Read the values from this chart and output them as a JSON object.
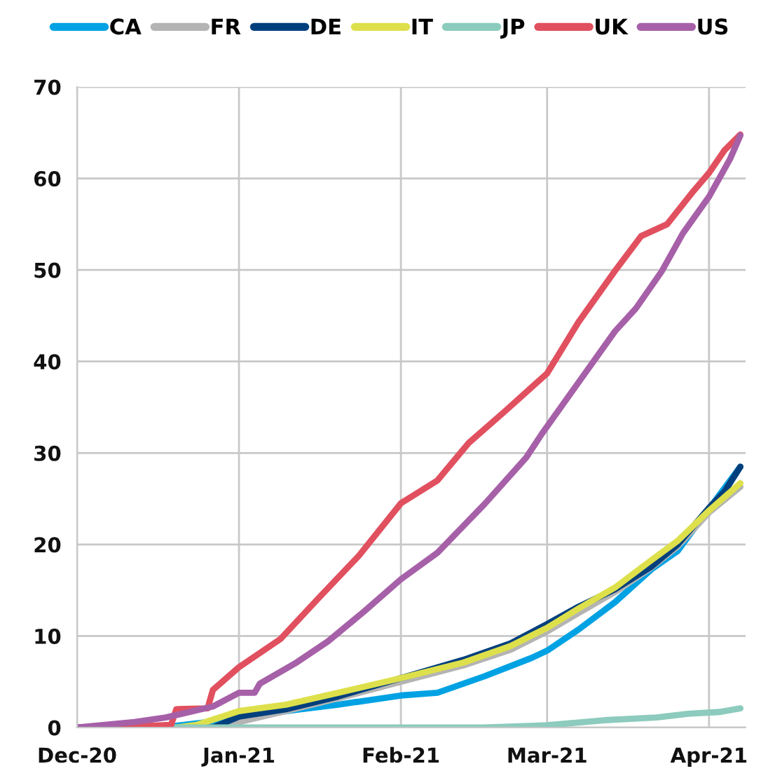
{
  "chart_data": {
    "type": "line",
    "legend": "top",
    "grid": true,
    "line_style": "solid",
    "xlim": [
      "2020-12-01",
      "2021-04-08"
    ],
    "xticks": [
      {
        "value": "2020-12-01",
        "label": "Dec-20"
      },
      {
        "value": "2021-01-01",
        "label": "Jan-21"
      },
      {
        "value": "2021-02-01",
        "label": "Feb-21"
      },
      {
        "value": "2021-03-01",
        "label": "Mar-21"
      },
      {
        "value": "2021-04-01",
        "label": "Apr-21"
      }
    ],
    "ylim": [
      0,
      70
    ],
    "yticks": [
      0,
      10,
      20,
      30,
      40,
      50,
      60,
      70
    ],
    "series": [
      {
        "name": "CA",
        "color": "#00a2e3",
        "x": [
          "2020-12-01",
          "2020-12-14",
          "2020-12-20",
          "2021-01-01",
          "2021-01-10",
          "2021-01-20",
          "2021-02-01",
          "2021-02-08",
          "2021-02-17",
          "2021-02-26",
          "2021-03-01",
          "2021-03-07",
          "2021-03-14",
          "2021-03-21",
          "2021-03-26",
          "2021-03-30",
          "2021-04-01",
          "2021-04-07"
        ],
        "values": [
          0,
          0,
          0.2,
          1.0,
          1.8,
          2.5,
          3.5,
          3.8,
          5.6,
          7.6,
          8.4,
          10.7,
          13.7,
          17.3,
          19.3,
          22.4,
          23.9,
          28.5
        ]
      },
      {
        "name": "FR",
        "color": "#b4b4b4",
        "x": [
          "2020-12-01",
          "2020-12-27",
          "2021-01-01",
          "2021-01-10",
          "2021-01-20",
          "2021-02-01",
          "2021-02-13",
          "2021-02-22",
          "2021-03-01",
          "2021-03-07",
          "2021-03-14",
          "2021-03-21",
          "2021-03-26",
          "2021-04-01",
          "2021-04-07"
        ],
        "values": [
          0,
          0,
          0.6,
          1.8,
          3.2,
          5.0,
          6.8,
          8.5,
          10.5,
          12.5,
          14.8,
          17.5,
          19.8,
          23.5,
          26.3
        ]
      },
      {
        "name": "DE",
        "color": "#003f7d",
        "x": [
          "2020-12-01",
          "2020-12-27",
          "2021-01-01",
          "2021-01-10",
          "2021-01-20",
          "2021-02-01",
          "2021-02-13",
          "2021-02-22",
          "2021-03-01",
          "2021-03-07",
          "2021-03-14",
          "2021-03-21",
          "2021-03-26",
          "2021-04-01",
          "2021-04-04",
          "2021-04-07"
        ],
        "values": [
          0,
          0,
          1.2,
          2.0,
          3.4,
          5.4,
          7.4,
          9.2,
          11.3,
          13.2,
          15.1,
          17.6,
          20.0,
          24.0,
          25.8,
          28.5
        ]
      },
      {
        "name": "IT",
        "color": "#dde04b",
        "x": [
          "2020-12-01",
          "2020-12-20",
          "2020-12-24",
          "2021-01-01",
          "2021-01-10",
          "2021-01-20",
          "2021-02-01",
          "2021-02-13",
          "2021-02-22",
          "2021-03-01",
          "2021-03-07",
          "2021-03-14",
          "2021-03-21",
          "2021-03-26",
          "2021-04-01",
          "2021-04-07"
        ],
        "values": [
          0,
          0,
          0.3,
          1.8,
          2.5,
          3.8,
          5.4,
          7.1,
          8.9,
          10.9,
          13.0,
          15.3,
          18.3,
          20.4,
          23.7,
          26.7
        ]
      },
      {
        "name": "JP",
        "color": "#8ccbbd",
        "x": [
          "2020-12-01",
          "2021-02-17",
          "2021-03-01",
          "2021-03-12",
          "2021-03-22",
          "2021-03-28",
          "2021-04-03",
          "2021-04-07"
        ],
        "values": [
          0,
          0,
          0.25,
          0.8,
          1.1,
          1.5,
          1.7,
          2.1
        ]
      },
      {
        "name": "UK",
        "color": "#e1505f",
        "x": [
          "2020-12-01",
          "2020-12-08",
          "2020-12-19",
          "2020-12-20",
          "2020-12-26",
          "2020-12-27",
          "2021-01-01",
          "2021-01-09",
          "2021-01-16",
          "2021-01-24",
          "2021-02-01",
          "2021-02-08",
          "2021-02-14",
          "2021-02-21",
          "2021-03-01",
          "2021-03-07",
          "2021-03-14",
          "2021-03-19",
          "2021-03-24",
          "2021-03-29",
          "2021-04-01",
          "2021-04-04",
          "2021-04-07"
        ],
        "values": [
          0,
          0,
          0.3,
          2.0,
          2.1,
          4.1,
          6.6,
          9.7,
          14.0,
          18.8,
          24.5,
          27.0,
          31.1,
          34.6,
          38.7,
          44.3,
          49.9,
          53.7,
          55.0,
          58.6,
          60.6,
          63.1,
          64.8
        ]
      },
      {
        "name": "US",
        "color": "#a660a8",
        "x": [
          "2020-12-01",
          "2020-12-12",
          "2020-12-18",
          "2020-12-27",
          "2021-01-01",
          "2021-01-04",
          "2021-01-05",
          "2021-01-12",
          "2021-01-18",
          "2021-01-25",
          "2021-02-01",
          "2021-02-08",
          "2021-02-17",
          "2021-02-25",
          "2021-02-28",
          "2021-03-07",
          "2021-03-14",
          "2021-03-18",
          "2021-03-23",
          "2021-03-27",
          "2021-04-01",
          "2021-04-05",
          "2021-04-07"
        ],
        "values": [
          0,
          0.6,
          1.1,
          2.3,
          3.8,
          3.8,
          4.8,
          7.1,
          9.4,
          12.7,
          16.2,
          19.1,
          24.4,
          29.5,
          32.1,
          37.7,
          43.3,
          45.8,
          49.9,
          54.0,
          58.0,
          62.1,
          64.7
        ]
      }
    ]
  }
}
